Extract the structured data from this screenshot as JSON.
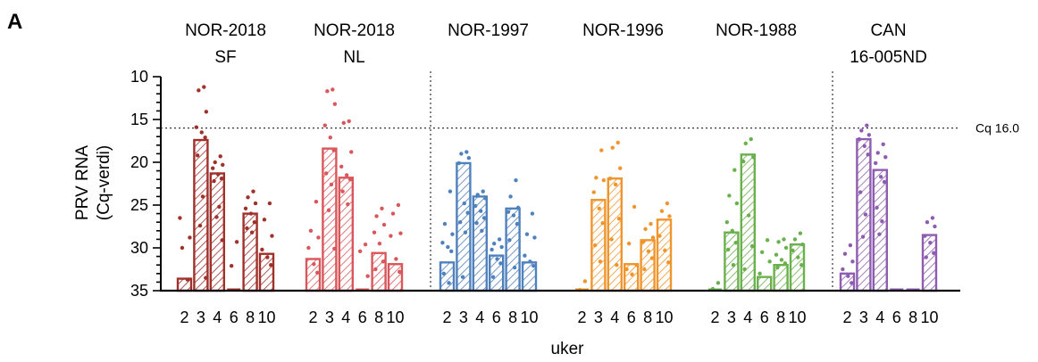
{
  "panel_label": "A",
  "chart_data": {
    "type": "bar",
    "ylabel_lines": [
      "PRV RNA",
      "(Cq-verdi)"
    ],
    "xlabel": "uker",
    "ylim": [
      35,
      10
    ],
    "y_inverted": true,
    "yticks": [
      10,
      15,
      20,
      25,
      30,
      35
    ],
    "reference_line": {
      "value": 16.0,
      "label": "Cq 16.0"
    },
    "categories": [
      "2",
      "3",
      "4",
      "6",
      "8",
      "10"
    ],
    "bar_pattern": "diagonal-hatch",
    "groups": [
      {
        "title_lines": [
          "NOR-2018",
          "SF"
        ],
        "color": "#a0302a",
        "values": [
          33.6,
          17.4,
          21.3,
          35,
          26.0,
          30.7
        ],
        "points": [
          [
            33.7,
            30.0,
            28.8,
            26.5
          ],
          [
            11.2,
            11.6,
            14.1,
            15.9,
            16.5,
            17.1,
            19.2,
            24.0,
            27.4,
            33.5
          ],
          [
            19.3,
            20.0,
            20.3,
            20.7,
            21.4,
            21.9,
            22.2,
            25.2,
            26.4,
            29.1
          ],
          [
            29.3,
            32.1
          ],
          [
            23.4,
            24.1,
            24.8,
            25.4,
            26.0,
            27.0,
            27.7,
            28.2
          ],
          [
            24.8,
            26.7,
            28.6,
            30.2,
            31.1,
            32.0
          ]
        ]
      },
      {
        "title_lines": [
          "NOR-2018",
          "NL"
        ],
        "color": "#d9575a",
        "values": [
          31.3,
          18.4,
          21.8,
          35,
          30.6,
          31.9
        ],
        "points": [
          [
            24.6,
            28.0,
            28.8,
            30.0,
            31.9,
            32.9
          ],
          [
            11.5,
            11.7,
            13.2,
            15.7,
            17.1,
            18.6,
            21.3,
            22.6,
            25.6,
            30.1
          ],
          [
            15.2,
            15.4,
            18.8,
            20.5,
            21.5,
            22.0,
            23.4,
            24.9
          ],
          [
            29.6,
            30.4,
            33.3
          ],
          [
            25.4,
            26.3,
            27.3,
            28.2,
            29.5,
            31.6,
            32.5
          ],
          [
            25.0,
            26.0,
            28.3,
            28.6,
            31.3,
            32.8
          ]
        ]
      },
      {
        "title_lines": [
          "NOR-1997"
        ],
        "color": "#4f81bd",
        "values": [
          31.7,
          20.1,
          24.0,
          30.9,
          25.4,
          31.7
        ],
        "points": [
          [
            23.4,
            27.2,
            28.4,
            29.4,
            29.9,
            30.4,
            33.0,
            34.1
          ],
          [
            18.8,
            19.0,
            19.5,
            20.1,
            24.8,
            25.9,
            27.0,
            28.2,
            33.4
          ],
          [
            23.4,
            23.8,
            24.2,
            25.1,
            25.7,
            26.5,
            27.1,
            28.0
          ],
          [
            29.0,
            29.5,
            29.9,
            30.2,
            31.3,
            31.8,
            33.4
          ],
          [
            22.1,
            24.0,
            25.3,
            25.8,
            26.2,
            27.2,
            29.1,
            32.3
          ],
          [
            26.0,
            28.4,
            28.8,
            30.9,
            31.6,
            32.1
          ]
        ]
      },
      {
        "title_lines": [
          "NOR-1996"
        ],
        "color": "#f0952c",
        "values": [
          35,
          24.4,
          21.9,
          31.9,
          29.1,
          26.7
        ],
        "points": [
          [
            33.9,
            34.9
          ],
          [
            18.6,
            21.8,
            22.1,
            23.5,
            25.4,
            27.1,
            29.7,
            31.6
          ],
          [
            17.7,
            18.3,
            20.7,
            21.9,
            22.6,
            26.6,
            29.0,
            32.0
          ],
          [
            25.2,
            29.5,
            32.0,
            32.5,
            33.1
          ],
          [
            27.2,
            27.8,
            28.8,
            29.3,
            30.4,
            31.2,
            32.5
          ],
          [
            24.8,
            25.7,
            26.3,
            28.6,
            30.3,
            31.7
          ]
        ]
      },
      {
        "title_lines": [
          "NOR-1988"
        ],
        "color": "#6ab04c",
        "values": [
          35,
          28.2,
          19.1,
          33.4,
          32.0,
          29.6
        ],
        "points": [
          [
            34.1,
            34.8
          ],
          [
            20.9,
            23.9,
            24.8,
            27.0,
            28.0,
            29.4,
            30.2,
            32.0
          ],
          [
            17.3,
            17.8,
            19.4,
            19.9,
            26.2,
            29.8,
            32.5
          ],
          [
            29.1,
            30.5,
            31.6,
            33.0
          ],
          [
            29.0,
            29.3,
            30.0,
            30.8,
            31.4,
            31.8,
            32.3
          ],
          [
            28.3,
            29.0,
            29.6,
            30.3,
            31.1,
            32.0
          ]
        ]
      },
      {
        "title_lines": [
          "CAN",
          "16-005ND"
        ],
        "color": "#8e5cb0",
        "values": [
          33.0,
          17.3,
          20.9,
          35,
          35,
          28.5
        ],
        "points": [
          [
            29.7,
            30.7,
            31.6,
            32.5,
            33.3,
            34.1
          ],
          [
            15.7,
            16.3,
            16.8,
            17.3,
            18.1,
            19.1,
            23.5,
            26.1,
            28.7
          ],
          [
            17.9,
            18.9,
            19.4,
            20.1,
            21.7,
            22.3,
            25.3,
            26.9,
            28.4
          ],
          [],
          [],
          [
            26.5,
            27.0,
            27.5,
            28.6,
            29.4,
            30.6,
            31.1
          ]
        ]
      }
    ]
  }
}
